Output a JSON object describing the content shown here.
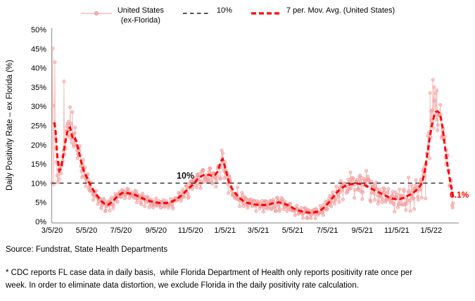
{
  "legend": {
    "items": [
      {
        "swatch": "pink-line-with-dot",
        "label_line1": "United States",
        "label_line2": "(ex-Florida)"
      },
      {
        "swatch": "black-dashed-line",
        "label": "10%"
      },
      {
        "swatch": "red-dashed-line",
        "label": "7 per. Mov. Avg. (United States)"
      }
    ]
  },
  "annotations": {
    "threshold_label": "10%",
    "latest_value_label": "6.1%"
  },
  "notes": {
    "source": "Source: Fundstrat, State Health Departments",
    "footnote_line1": "* CDC reports FL case data in daily basis,  while Florida Department of Health only reports positivity rate once per",
    "footnote_line2": "week. In order to eliminate data distortion, we exclude Florida in the daily positivity rate calculation."
  },
  "colors": {
    "daily_line": "#f6bcbc",
    "daily_marker_fill": "#f7b0b0",
    "daily_marker_edge": "#ef8f8f",
    "moving_average": "#ff0000",
    "threshold": "#1a1a1a",
    "latest_label": "#ff0000",
    "axis": "#9c9c9c",
    "text": "#000000"
  },
  "chart_data": {
    "type": "line",
    "title": "",
    "xlabel": "",
    "ylabel": "Daily Positivity Rate – ex Florida (%)",
    "ylim": [
      0,
      50
    ],
    "grid": false,
    "legend_position": "top-center",
    "y_ticks": [
      {
        "label": "0%",
        "value": 0
      },
      {
        "label": "5%",
        "value": 5
      },
      {
        "label": "10%",
        "value": 10
      },
      {
        "label": "15%",
        "value": 15
      },
      {
        "label": "20%",
        "value": 20
      },
      {
        "label": "25%",
        "value": 25
      },
      {
        "label": "30%",
        "value": 30
      },
      {
        "label": "35%",
        "value": 35
      },
      {
        "label": "40%",
        "value": 40
      },
      {
        "label": "45%",
        "value": 45
      },
      {
        "label": "50%",
        "value": 50
      }
    ],
    "x_ticks": [
      {
        "label": "3/5/20",
        "date": "2020-03-05"
      },
      {
        "label": "5/5/20",
        "date": "2020-05-05"
      },
      {
        "label": "7/5/20",
        "date": "2020-07-05"
      },
      {
        "label": "9/5/20",
        "date": "2020-09-05"
      },
      {
        "label": "11/5/20",
        "date": "2020-11-05"
      },
      {
        "label": "1/5/21",
        "date": "2021-01-05"
      },
      {
        "label": "3/5/21",
        "date": "2021-03-05"
      },
      {
        "label": "5/5/21",
        "date": "2021-05-05"
      },
      {
        "label": "7/5/21",
        "date": "2021-07-05"
      },
      {
        "label": "9/5/21",
        "date": "2021-09-05"
      },
      {
        "label": "11/5/21",
        "date": "2021-11-05"
      },
      {
        "label": "1/5/22",
        "date": "2022-01-05"
      }
    ],
    "threshold": {
      "value": 10,
      "label": "10%"
    },
    "latest_point": {
      "date": "2022-02-13",
      "value": 6.1,
      "label": "6.1%"
    },
    "date_range": [
      "2020-03-05",
      "2022-02-13"
    ],
    "series": [
      {
        "name": "United States (ex-Florida)",
        "role": "daily",
        "style": "thin-pink-line-with-markers",
        "explicit_daily": [
          [
            "2020-03-05",
            10.0
          ],
          [
            "2020-03-06",
            45.1
          ],
          [
            "2020-03-07",
            30.2
          ],
          [
            "2020-03-08",
            9.7
          ],
          [
            "2020-03-09",
            25.5
          ],
          [
            "2020-03-10",
            41.5
          ],
          [
            "2020-03-11",
            22.0
          ],
          [
            "2020-03-12",
            19.0
          ],
          [
            "2020-03-13",
            15.5
          ],
          [
            "2020-03-14",
            12.0
          ],
          [
            "2020-03-15",
            10.2
          ],
          [
            "2020-03-16",
            13.5
          ],
          [
            "2020-03-17",
            14.8
          ],
          [
            "2020-03-18",
            11.0
          ],
          [
            "2020-03-19",
            13.8
          ],
          [
            "2020-03-20",
            15.2
          ],
          [
            "2020-03-21",
            12.5
          ],
          [
            "2020-03-22",
            14.5
          ],
          [
            "2020-03-23",
            17.0
          ],
          [
            "2020-03-24",
            15.8
          ],
          [
            "2020-03-25",
            18.5
          ],
          [
            "2020-03-26",
            36.5
          ],
          [
            "2020-03-27",
            17.5
          ],
          [
            "2020-03-28",
            21.0
          ],
          [
            "2020-03-29",
            19.0
          ],
          [
            "2020-03-30",
            23.5
          ],
          [
            "2020-03-31",
            24.8
          ],
          [
            "2020-04-01",
            22.5
          ],
          [
            "2020-04-02",
            25.5
          ],
          [
            "2020-04-03",
            26.0
          ],
          [
            "2020-04-04",
            24.0
          ],
          [
            "2020-04-05",
            22.0
          ],
          [
            "2020-04-06",
            29.8
          ],
          [
            "2020-04-07",
            25.5
          ],
          [
            "2020-04-08",
            21.5
          ],
          [
            "2020-04-09",
            20.5
          ],
          [
            "2020-04-10",
            28.5
          ],
          [
            "2020-04-11",
            22.8
          ],
          [
            "2020-04-12",
            19.5
          ],
          [
            "2020-04-13",
            20.0
          ],
          [
            "2020-04-14",
            23.0
          ],
          [
            "2020-04-15",
            24.5
          ],
          [
            "2020-04-16",
            21.0
          ],
          [
            "2020-04-17",
            19.8
          ],
          [
            "2020-04-18",
            18.5
          ],
          [
            "2020-04-19",
            16.5
          ],
          [
            "2020-04-20",
            17.5
          ]
        ],
        "outliers": [
          [
            "2021-08-15",
            12.8
          ],
          [
            "2021-09-12",
            13.2
          ],
          [
            "2021-11-26",
            11.5
          ],
          [
            "2021-12-26",
            6.0
          ],
          [
            "2022-01-03",
            33.5
          ],
          [
            "2022-01-08",
            36.9
          ],
          [
            "2022-01-10",
            35.0
          ],
          [
            "2022-01-15",
            34.2
          ],
          [
            "2022-02-11",
            4.2
          ],
          [
            "2022-02-12",
            3.6
          ],
          [
            "2022-02-13",
            4.8
          ]
        ],
        "scatter_envelope": [
          [
            "2020-04-21",
            2.6
          ],
          [
            "2020-05-15",
            1.8
          ],
          [
            "2020-06-15",
            1.1
          ],
          [
            "2020-08-01",
            1.2
          ],
          [
            "2020-10-01",
            1.1
          ],
          [
            "2020-11-15",
            1.6
          ],
          [
            "2020-12-25",
            2.3
          ],
          [
            "2021-01-15",
            2.0
          ],
          [
            "2021-02-15",
            1.4
          ],
          [
            "2021-04-15",
            1.3
          ],
          [
            "2021-06-10",
            0.9
          ],
          [
            "2021-07-20",
            1.7
          ],
          [
            "2021-09-01",
            2.3
          ],
          [
            "2021-10-15",
            1.9
          ],
          [
            "2021-11-20",
            2.1
          ],
          [
            "2021-12-24",
            3.2
          ],
          [
            "2022-01-12",
            4.2
          ],
          [
            "2022-02-01",
            3.0
          ],
          [
            "2022-02-13",
            1.8
          ]
        ],
        "noise_seed": 42
      },
      {
        "name": "10%",
        "role": "threshold",
        "style": "black-dashed",
        "value": 10
      },
      {
        "name": "7 per. Mov. Avg. (United States)",
        "role": "moving-average",
        "style": "red-bold-dashed",
        "points": [
          [
            "2020-03-09",
            25.8
          ],
          [
            "2020-03-11",
            24.0
          ],
          [
            "2020-03-13",
            19.5
          ],
          [
            "2020-03-15",
            16.0
          ],
          [
            "2020-03-18",
            13.2
          ],
          [
            "2020-03-21",
            13.8
          ],
          [
            "2020-03-24",
            16.5
          ],
          [
            "2020-03-27",
            19.5
          ],
          [
            "2020-03-31",
            22.8
          ],
          [
            "2020-04-03",
            24.3
          ],
          [
            "2020-04-06",
            24.5
          ],
          [
            "2020-04-09",
            22.5
          ],
          [
            "2020-04-12",
            21.2
          ],
          [
            "2020-04-15",
            21.6
          ],
          [
            "2020-04-18",
            20.3
          ],
          [
            "2020-04-22",
            17.8
          ],
          [
            "2020-04-26",
            15.2
          ],
          [
            "2020-04-30",
            13.2
          ],
          [
            "2020-05-05",
            11.6
          ],
          [
            "2020-05-10",
            10.0
          ],
          [
            "2020-05-15",
            8.7
          ],
          [
            "2020-05-20",
            7.4
          ],
          [
            "2020-05-26",
            6.3
          ],
          [
            "2020-06-01",
            5.2
          ],
          [
            "2020-06-07",
            4.5
          ],
          [
            "2020-06-13",
            4.4
          ],
          [
            "2020-06-19",
            5.1
          ],
          [
            "2020-06-25",
            6.0
          ],
          [
            "2020-07-01",
            6.9
          ],
          [
            "2020-07-07",
            7.4
          ],
          [
            "2020-07-11",
            7.5
          ],
          [
            "2020-07-17",
            7.4
          ],
          [
            "2020-07-23",
            7.2
          ],
          [
            "2020-07-29",
            7.0
          ],
          [
            "2020-08-04",
            6.6
          ],
          [
            "2020-08-11",
            6.1
          ],
          [
            "2020-08-18",
            5.7
          ],
          [
            "2020-08-25",
            5.3
          ],
          [
            "2020-09-01",
            5.1
          ],
          [
            "2020-09-08",
            4.9
          ],
          [
            "2020-09-15",
            4.8
          ],
          [
            "2020-09-22",
            4.8
          ],
          [
            "2020-09-29",
            5.0
          ],
          [
            "2020-10-06",
            5.4
          ],
          [
            "2020-10-13",
            6.0
          ],
          [
            "2020-10-20",
            6.8
          ],
          [
            "2020-10-27",
            7.8
          ],
          [
            "2020-11-03",
            8.8
          ],
          [
            "2020-11-09",
            9.6
          ],
          [
            "2020-11-14",
            10.4
          ],
          [
            "2020-11-19",
            11.3
          ],
          [
            "2020-11-25",
            11.9
          ],
          [
            "2020-12-01",
            12.2
          ],
          [
            "2020-12-07",
            12.2
          ],
          [
            "2020-12-13",
            11.9
          ],
          [
            "2020-12-18",
            12.1
          ],
          [
            "2020-12-23",
            13.0
          ],
          [
            "2020-12-27",
            14.8
          ],
          [
            "2020-12-30",
            16.0
          ],
          [
            "2021-01-01",
            16.3
          ],
          [
            "2021-01-04",
            14.8
          ],
          [
            "2021-01-08",
            12.5
          ],
          [
            "2021-01-12",
            10.2
          ],
          [
            "2021-01-16",
            8.9
          ],
          [
            "2021-01-21",
            7.8
          ],
          [
            "2021-01-26",
            6.9
          ],
          [
            "2021-02-01",
            6.0
          ],
          [
            "2021-02-08",
            5.2
          ],
          [
            "2021-02-15",
            4.8
          ],
          [
            "2021-02-22",
            4.6
          ],
          [
            "2021-03-01",
            4.4
          ],
          [
            "2021-03-09",
            4.3
          ],
          [
            "2021-03-17",
            4.3
          ],
          [
            "2021-03-25",
            4.5
          ],
          [
            "2021-04-02",
            4.8
          ],
          [
            "2021-04-10",
            5.0
          ],
          [
            "2021-04-17",
            4.8
          ],
          [
            "2021-04-24",
            4.4
          ],
          [
            "2021-05-01",
            3.9
          ],
          [
            "2021-05-08",
            3.3
          ],
          [
            "2021-05-15",
            2.9
          ],
          [
            "2021-05-22",
            2.6
          ],
          [
            "2021-05-29",
            2.4
          ],
          [
            "2021-06-05",
            2.3
          ],
          [
            "2021-06-12",
            2.4
          ],
          [
            "2021-06-19",
            2.6
          ],
          [
            "2021-06-25",
            3.1
          ],
          [
            "2021-07-01",
            3.9
          ],
          [
            "2021-07-08",
            5.0
          ],
          [
            "2021-07-15",
            6.3
          ],
          [
            "2021-07-22",
            7.6
          ],
          [
            "2021-07-29",
            8.6
          ],
          [
            "2021-08-05",
            9.2
          ],
          [
            "2021-08-12",
            9.6
          ],
          [
            "2021-08-19",
            9.8
          ],
          [
            "2021-08-26",
            9.9
          ],
          [
            "2021-09-02",
            9.8
          ],
          [
            "2021-09-09",
            9.5
          ],
          [
            "2021-09-16",
            9.0
          ],
          [
            "2021-09-23",
            8.4
          ],
          [
            "2021-09-30",
            7.9
          ],
          [
            "2021-10-07",
            7.4
          ],
          [
            "2021-10-14",
            6.9
          ],
          [
            "2021-10-21",
            6.4
          ],
          [
            "2021-10-28",
            6.0
          ],
          [
            "2021-11-04",
            5.8
          ],
          [
            "2021-11-11",
            5.9
          ],
          [
            "2021-11-18",
            6.2
          ],
          [
            "2021-11-24",
            6.7
          ],
          [
            "2021-11-30",
            7.1
          ],
          [
            "2021-12-06",
            7.7
          ],
          [
            "2021-12-12",
            8.5
          ],
          [
            "2021-12-17",
            9.4
          ],
          [
            "2021-12-21",
            10.8
          ],
          [
            "2021-12-25",
            13.5
          ],
          [
            "2021-12-29",
            17.5
          ],
          [
            "2022-01-02",
            21.5
          ],
          [
            "2022-01-06",
            25.0
          ],
          [
            "2022-01-10",
            27.5
          ],
          [
            "2022-01-13",
            28.5
          ],
          [
            "2022-01-16",
            28.7
          ],
          [
            "2022-01-19",
            28.3
          ],
          [
            "2022-01-22",
            27.0
          ],
          [
            "2022-01-25",
            24.5
          ],
          [
            "2022-01-28",
            21.0
          ],
          [
            "2022-01-31",
            17.5
          ],
          [
            "2022-02-03",
            14.5
          ],
          [
            "2022-02-06",
            11.8
          ],
          [
            "2022-02-09",
            9.3
          ],
          [
            "2022-02-11",
            7.8
          ],
          [
            "2022-02-13",
            6.1
          ]
        ]
      }
    ]
  }
}
